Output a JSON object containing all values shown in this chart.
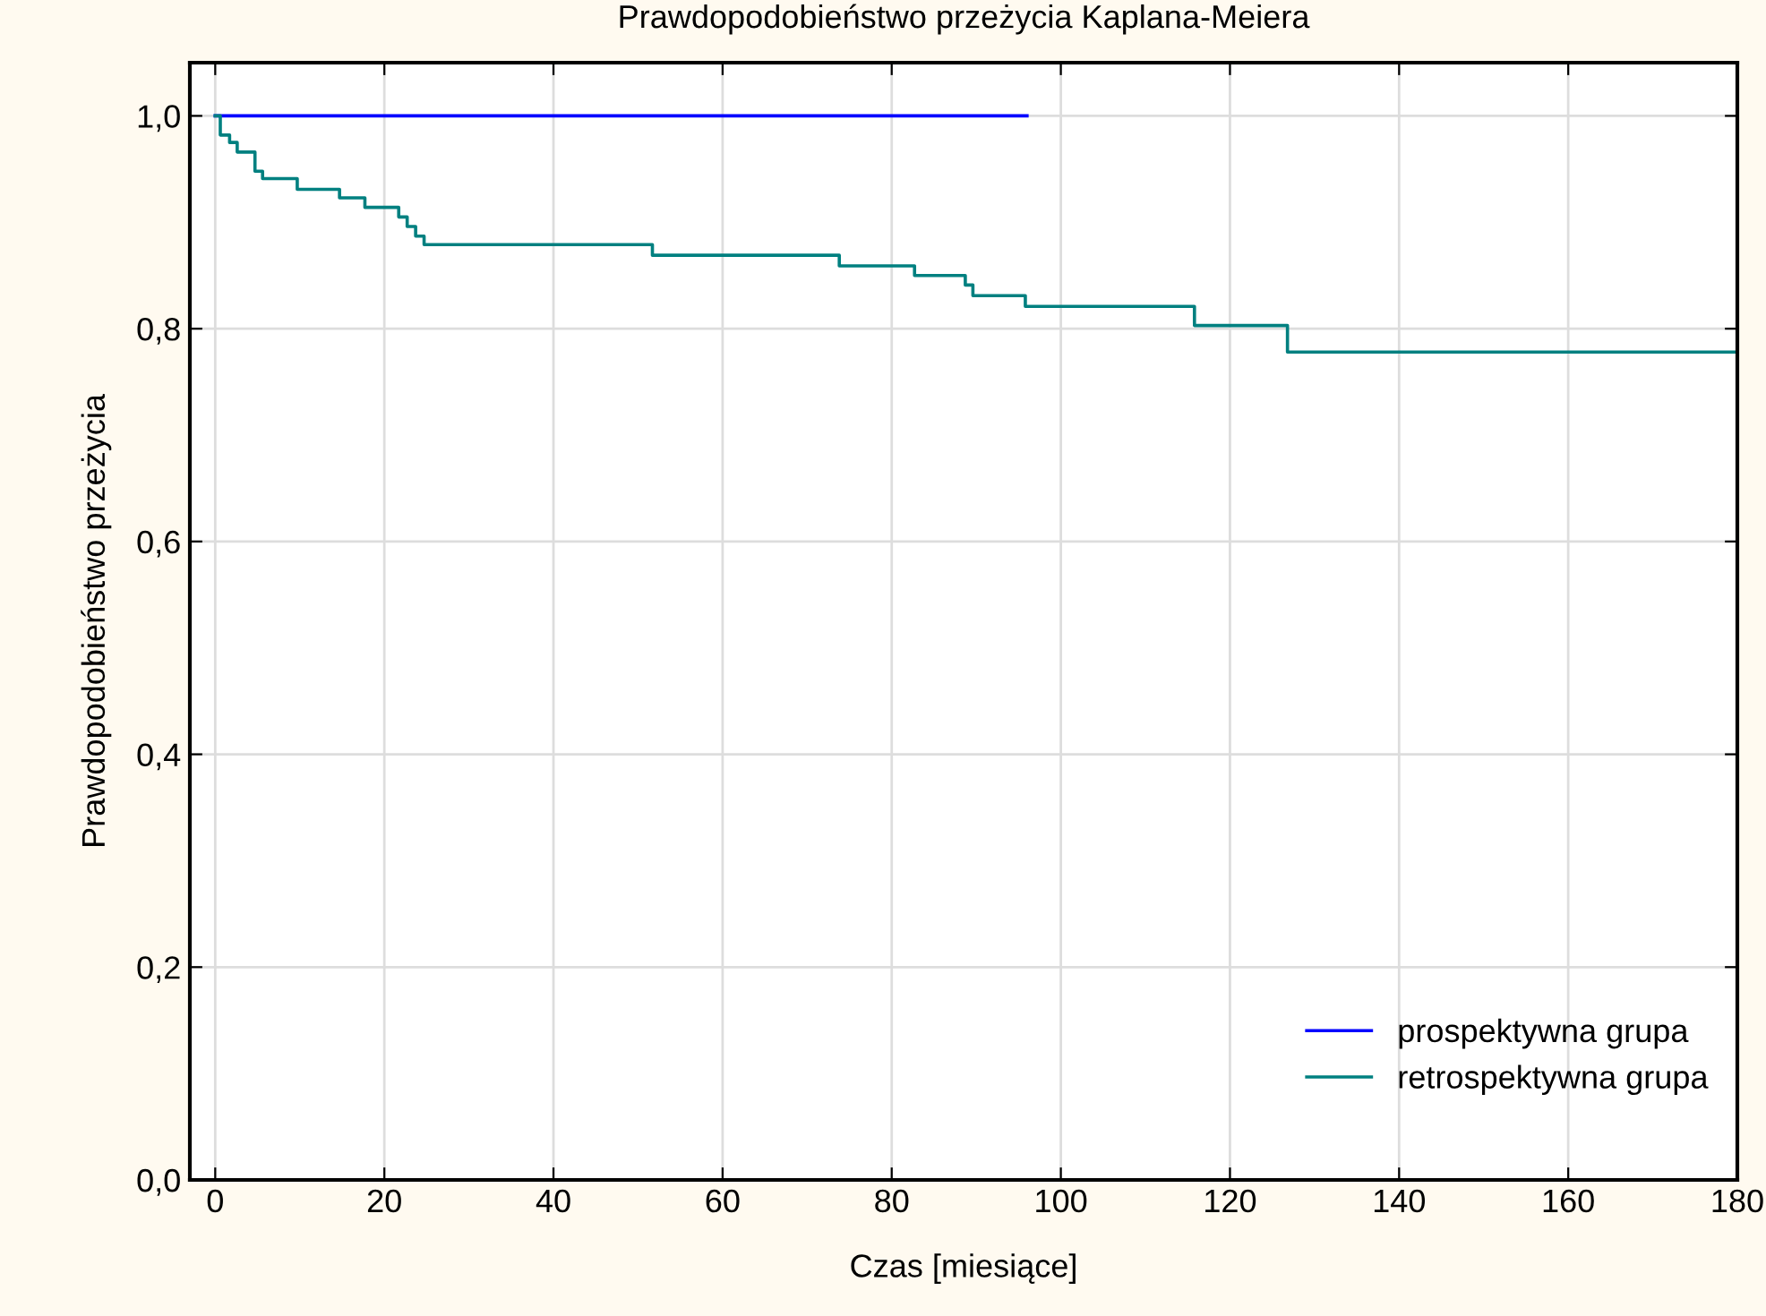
{
  "chart_data": {
    "type": "step",
    "title": "Prawdopodobieństwo przeżycia Kaplana-Meiera",
    "xlabel": "Czas [miesiące]",
    "ylabel": "Prawdopodobieństwo przeżycia",
    "series": [
      {
        "name": "prospektywna grupa",
        "color": "#0000ff",
        "x": [
          0,
          96
        ],
        "values": [
          1.0,
          1.0
        ]
      },
      {
        "name": "retrospektywna grupa",
        "color": "#008080",
        "x": [
          0,
          0.6,
          1.7,
          2.6,
          4.7,
          5.6,
          9.7,
          14.7,
          17.7,
          21.7,
          22.7,
          23.7,
          24.7,
          51.7,
          73.8,
          82.7,
          88.7,
          89.6,
          95.8,
          115.8,
          126.8,
          180
        ],
        "values": [
          1.0,
          0.982,
          0.975,
          0.966,
          0.948,
          0.941,
          0.931,
          0.923,
          0.914,
          0.905,
          0.896,
          0.887,
          0.879,
          0.869,
          0.859,
          0.85,
          0.841,
          0.831,
          0.821,
          0.803,
          0.778,
          0.778
        ]
      }
    ],
    "xlim": [
      -3,
      180
    ],
    "xticks": [
      0,
      20,
      40,
      60,
      80,
      100,
      120,
      140,
      160,
      180
    ],
    "ylim": [
      0,
      1.05
    ],
    "yticks": [
      {
        "value": 0,
        "label": "0,0"
      },
      {
        "value": 0.2,
        "label": "0,2"
      },
      {
        "value": 0.4,
        "label": "0,4"
      },
      {
        "value": 0.6,
        "label": "0,6"
      },
      {
        "value": 0.8,
        "label": "0,8"
      },
      {
        "value": 1.0,
        "label": "1,0"
      }
    ],
    "grid": true,
    "legend": "bottom right"
  }
}
